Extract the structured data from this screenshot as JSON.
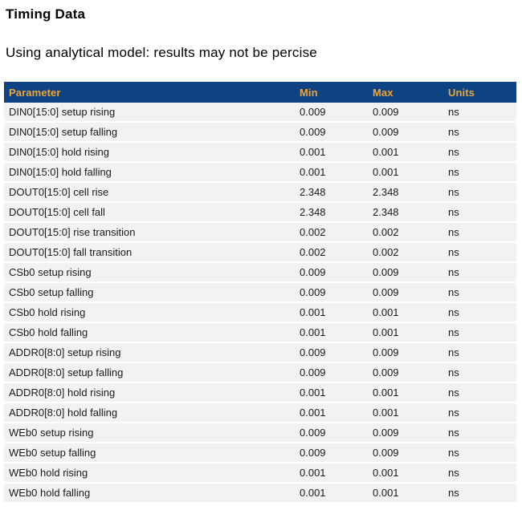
{
  "page": {
    "title": "Timing Data",
    "subtitle": "Using analytical model: results may not be percise"
  },
  "colors": {
    "header_bg": "#0d4383",
    "header_text": "#f0a434",
    "row_bg": "#f1f2f3"
  },
  "table": {
    "columns": [
      "Parameter",
      "Min",
      "Max",
      "Units"
    ],
    "rows": [
      {
        "parameter": "DIN0[15:0] setup rising",
        "min": "0.009",
        "max": "0.009",
        "units": "ns"
      },
      {
        "parameter": "DIN0[15:0] setup falling",
        "min": "0.009",
        "max": "0.009",
        "units": "ns"
      },
      {
        "parameter": "DIN0[15:0] hold rising",
        "min": "0.001",
        "max": "0.001",
        "units": "ns"
      },
      {
        "parameter": "DIN0[15:0] hold falling",
        "min": "0.001",
        "max": "0.001",
        "units": "ns"
      },
      {
        "parameter": "DOUT0[15:0] cell rise",
        "min": "2.348",
        "max": "2.348",
        "units": "ns"
      },
      {
        "parameter": "DOUT0[15:0] cell fall",
        "min": "2.348",
        "max": "2.348",
        "units": "ns"
      },
      {
        "parameter": "DOUT0[15:0] rise transition",
        "min": "0.002",
        "max": "0.002",
        "units": "ns"
      },
      {
        "parameter": "DOUT0[15:0] fall transition",
        "min": "0.002",
        "max": "0.002",
        "units": "ns"
      },
      {
        "parameter": "CSb0 setup rising",
        "min": "0.009",
        "max": "0.009",
        "units": "ns"
      },
      {
        "parameter": "CSb0 setup falling",
        "min": "0.009",
        "max": "0.009",
        "units": "ns"
      },
      {
        "parameter": "CSb0 hold rising",
        "min": "0.001",
        "max": "0.001",
        "units": "ns"
      },
      {
        "parameter": "CSb0 hold falling",
        "min": "0.001",
        "max": "0.001",
        "units": "ns"
      },
      {
        "parameter": "ADDR0[8:0] setup rising",
        "min": "0.009",
        "max": "0.009",
        "units": "ns"
      },
      {
        "parameter": "ADDR0[8:0] setup falling",
        "min": "0.009",
        "max": "0.009",
        "units": "ns"
      },
      {
        "parameter": "ADDR0[8:0] hold rising",
        "min": "0.001",
        "max": "0.001",
        "units": "ns"
      },
      {
        "parameter": "ADDR0[8:0] hold falling",
        "min": "0.001",
        "max": "0.001",
        "units": "ns"
      },
      {
        "parameter": "WEb0 setup rising",
        "min": "0.009",
        "max": "0.009",
        "units": "ns"
      },
      {
        "parameter": "WEb0 setup falling",
        "min": "0.009",
        "max": "0.009",
        "units": "ns"
      },
      {
        "parameter": "WEb0 hold rising",
        "min": "0.001",
        "max": "0.001",
        "units": "ns"
      },
      {
        "parameter": "WEb0 hold falling",
        "min": "0.001",
        "max": "0.001",
        "units": "ns"
      }
    ]
  }
}
